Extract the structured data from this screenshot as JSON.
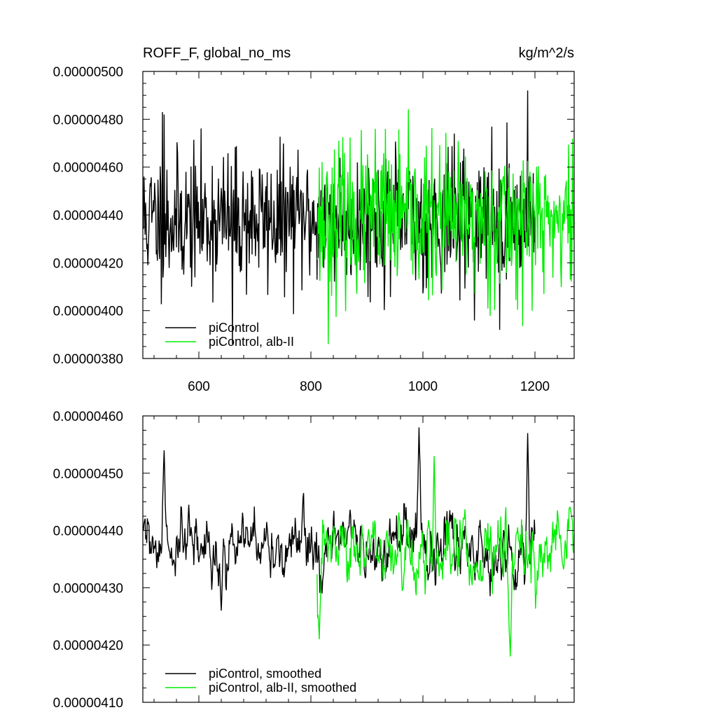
{
  "header": {
    "title_left": "ROFF_F, global_no_ms",
    "title_right": "kg/m^2/s"
  },
  "chart_data": [
    {
      "type": "line",
      "title": "ROFF_F, global_no_ms",
      "units": "kg/m^2/s",
      "xlim": [
        500,
        1270
      ],
      "ylim": [
        3.8e-06,
        5e-06
      ],
      "x_ticks": [
        600,
        800,
        1000,
        1200
      ],
      "x_tick_labels": [
        "600",
        "800",
        "1000",
        "1200"
      ],
      "y_ticks": [
        3.8e-06,
        4e-06,
        4.2e-06,
        4.4e-06,
        4.6e-06,
        4.8e-06,
        5e-06
      ],
      "y_tick_labels": [
        "0.00000380",
        "0.00000400",
        "0.00000420",
        "0.00000440",
        "0.00000460",
        "0.00000480",
        "0.00000500"
      ],
      "grid": false,
      "legend_position": "bottom-left",
      "series": [
        {
          "name": "piControl",
          "color": "#000000",
          "x_range": [
            501,
            1200
          ],
          "mean": 4.38e-06,
          "std": 1.4e-07,
          "seed": 11,
          "anchors": [
            [
              535,
              4.83e-06
            ],
            [
              538,
              4.82e-06
            ],
            [
              660,
              3.86e-06
            ],
            [
              1137,
              3.92e-06
            ],
            [
              1187,
              4.92e-06
            ]
          ]
        },
        {
          "name": "piControl, alb-II",
          "color": "#00ee00",
          "x_range": [
            811,
            1270
          ],
          "mean": 4.38e-06,
          "std": 1.5e-07,
          "seed": 23,
          "anchors": [
            [
              831,
              3.86e-06
            ],
            [
              915,
              4.76e-06
            ],
            [
              933,
              4.76e-06
            ]
          ]
        }
      ]
    },
    {
      "type": "line",
      "xlim": [
        500,
        1270
      ],
      "ylim": [
        4.1e-06,
        4.6e-06
      ],
      "x_ticks": [
        600,
        800,
        1000,
        1200
      ],
      "y_ticks": [
        4.1e-06,
        4.2e-06,
        4.3e-06,
        4.4e-06,
        4.5e-06,
        4.6e-06
      ],
      "y_tick_labels": [
        "0.00000410",
        "0.00000420",
        "0.00000430",
        "0.00000440",
        "0.00000450",
        "0.00000460"
      ],
      "grid": false,
      "legend_position": "bottom-left",
      "series": [
        {
          "name": "piControl, smoothed",
          "color": "#000000",
          "x_range": [
            501,
            1200
          ],
          "mean": 4.37e-06,
          "std": 6e-08,
          "seed": 31,
          "anchors": [
            [
              538,
              4.54e-06
            ],
            [
              640,
              4.26e-06
            ],
            [
              820,
              4.29e-06
            ],
            [
              993,
              4.58e-06
            ],
            [
              1187,
              4.57e-06
            ]
          ]
        },
        {
          "name": "piControl, alb-II, smoothed",
          "color": "#00ee00",
          "x_range": [
            811,
            1270
          ],
          "mean": 4.36e-06,
          "std": 6.5e-08,
          "seed": 47,
          "anchors": [
            [
              815,
              4.21e-06
            ],
            [
              1020,
              4.53e-06
            ],
            [
              1156,
              4.18e-06
            ],
            [
              1263,
              4.44e-06
            ]
          ]
        }
      ]
    }
  ]
}
